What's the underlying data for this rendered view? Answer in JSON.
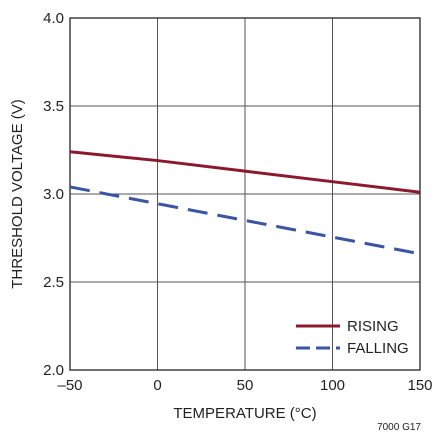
{
  "chart_data": {
    "type": "line",
    "title": "",
    "xlabel": "TEMPERATURE (°C)",
    "ylabel": "THRESHOLD VOLTAGE (V)",
    "xlim": [
      -50,
      150
    ],
    "ylim": [
      2.0,
      4.0
    ],
    "x_ticks": [
      -50,
      0,
      50,
      100,
      150
    ],
    "x_tick_labels": [
      "–50",
      "0",
      "50",
      "100",
      "150"
    ],
    "y_ticks": [
      2.0,
      2.5,
      3.0,
      3.5,
      4.0
    ],
    "y_tick_labels": [
      "2.0",
      "2.5",
      "3.0",
      "3.5",
      "4.0"
    ],
    "grid": true,
    "legend_position": "bottom-right",
    "series": [
      {
        "name": "RISING",
        "color": "#8b1a2e",
        "style": "solid",
        "x": [
          -50,
          0,
          50,
          100,
          150
        ],
        "y": [
          3.24,
          3.19,
          3.13,
          3.07,
          3.01
        ]
      },
      {
        "name": "FALLING",
        "color": "#3b54a3",
        "style": "dashed",
        "x": [
          -50,
          0,
          50,
          100,
          150
        ],
        "y": [
          3.04,
          2.945,
          2.85,
          2.755,
          2.66
        ]
      }
    ],
    "figure_id": "7000 G17"
  }
}
